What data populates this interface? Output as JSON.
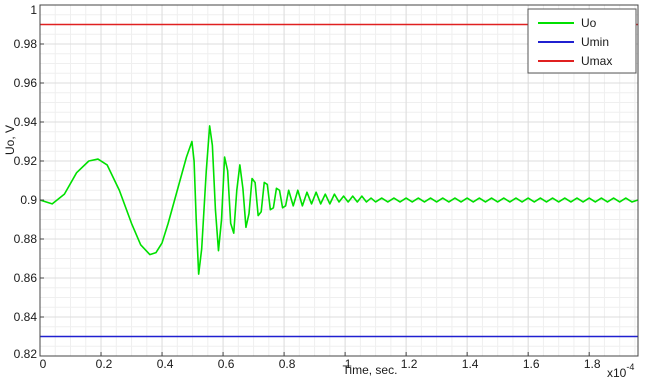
{
  "chart_data": {
    "type": "line",
    "title": "",
    "xlabel": "Time, sec.",
    "ylabel": "Uo, V",
    "x_exponent_label": "x10",
    "x_exponent_power": "-4",
    "xlim": [
      0,
      1.96
    ],
    "ylim": [
      0.82,
      1.0
    ],
    "xticks": [
      0,
      0.2,
      0.4,
      0.6,
      0.8,
      1,
      1.2,
      1.4,
      1.6,
      1.8
    ],
    "xtick_labels": [
      "0",
      "0.2",
      "0.4",
      "0.6",
      "0.8",
      "1",
      "1.2",
      "1.4",
      "1.6",
      "1.8"
    ],
    "yticks": [
      0.82,
      0.84,
      0.86,
      0.88,
      0.9,
      0.92,
      0.94,
      0.96,
      0.98,
      1.0
    ],
    "ytick_labels": [
      "0.82",
      "0.84",
      "0.86",
      "0.88",
      "0.9",
      "0.92",
      "0.94",
      "0.96",
      "0.98",
      "1"
    ],
    "grid": true,
    "legend_position": "top-right",
    "series": [
      {
        "name": "Uo",
        "color": "#00e000",
        "x": [
          0,
          0.04,
          0.08,
          0.12,
          0.16,
          0.19,
          0.22,
          0.26,
          0.3,
          0.33,
          0.36,
          0.38,
          0.4,
          0.42,
          0.45,
          0.48,
          0.498,
          0.505,
          0.512,
          0.52,
          0.53,
          0.545,
          0.556,
          0.565,
          0.575,
          0.585,
          0.595,
          0.605,
          0.615,
          0.625,
          0.635,
          0.645,
          0.655,
          0.665,
          0.675,
          0.685,
          0.695,
          0.705,
          0.715,
          0.725,
          0.735,
          0.745,
          0.755,
          0.765,
          0.775,
          0.785,
          0.795,
          0.805,
          0.815,
          0.83,
          0.845,
          0.86,
          0.875,
          0.89,
          0.905,
          0.92,
          0.935,
          0.95,
          0.965,
          0.98,
          0.995,
          1.01,
          1.025,
          1.04,
          1.055,
          1.07,
          1.085,
          1.1,
          1.12,
          1.14,
          1.16,
          1.18,
          1.2,
          1.22,
          1.24,
          1.26,
          1.28,
          1.3,
          1.32,
          1.34,
          1.36,
          1.38,
          1.4,
          1.42,
          1.44,
          1.46,
          1.48,
          1.5,
          1.52,
          1.54,
          1.56,
          1.58,
          1.6,
          1.62,
          1.64,
          1.66,
          1.68,
          1.7,
          1.72,
          1.74,
          1.76,
          1.78,
          1.8,
          1.82,
          1.84,
          1.86,
          1.88,
          1.9,
          1.92,
          1.94,
          1.96
        ],
        "values": [
          0.9,
          0.898,
          0.903,
          0.914,
          0.92,
          0.921,
          0.918,
          0.905,
          0.888,
          0.877,
          0.872,
          0.873,
          0.878,
          0.888,
          0.905,
          0.922,
          0.93,
          0.92,
          0.89,
          0.862,
          0.875,
          0.915,
          0.938,
          0.928,
          0.895,
          0.874,
          0.89,
          0.922,
          0.915,
          0.888,
          0.883,
          0.905,
          0.918,
          0.906,
          0.886,
          0.893,
          0.911,
          0.909,
          0.892,
          0.894,
          0.909,
          0.908,
          0.895,
          0.896,
          0.906,
          0.905,
          0.896,
          0.897,
          0.905,
          0.897,
          0.905,
          0.897,
          0.904,
          0.898,
          0.904,
          0.898,
          0.903,
          0.898,
          0.903,
          0.899,
          0.902,
          0.899,
          0.902,
          0.899,
          0.902,
          0.899,
          0.901,
          0.899,
          0.901,
          0.899,
          0.901,
          0.899,
          0.901,
          0.899,
          0.901,
          0.899,
          0.901,
          0.899,
          0.901,
          0.899,
          0.901,
          0.899,
          0.901,
          0.899,
          0.901,
          0.899,
          0.901,
          0.899,
          0.901,
          0.899,
          0.901,
          0.899,
          0.901,
          0.899,
          0.901,
          0.899,
          0.901,
          0.899,
          0.901,
          0.899,
          0.901,
          0.899,
          0.901,
          0.899,
          0.901,
          0.899,
          0.901,
          0.899,
          0.901,
          0.899,
          0.9
        ]
      },
      {
        "name": "Umin",
        "color": "#2020d0",
        "x": [
          0,
          1.96
        ],
        "values": [
          0.83,
          0.83
        ]
      },
      {
        "name": "Umax",
        "color": "#e02020",
        "x": [
          0,
          1.96
        ],
        "values": [
          0.99,
          0.99
        ]
      }
    ]
  }
}
